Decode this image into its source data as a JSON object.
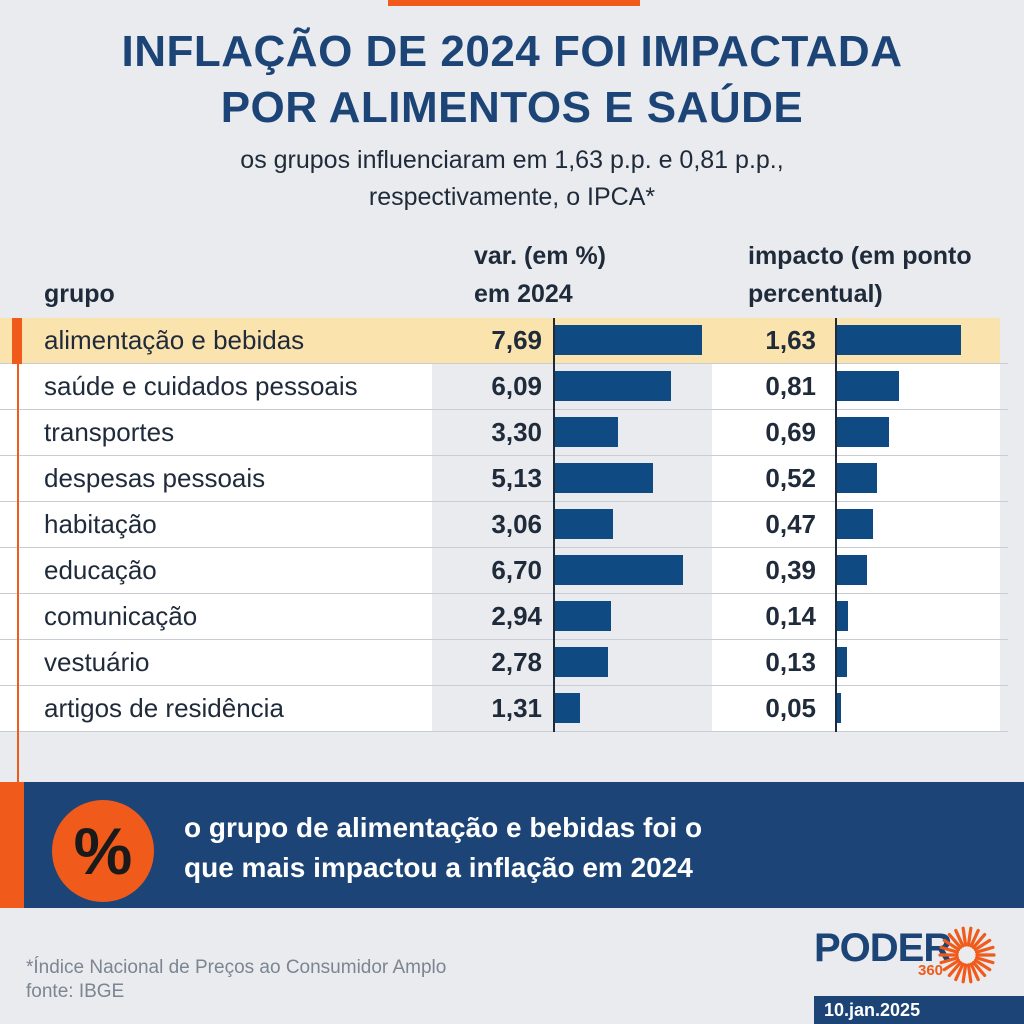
{
  "title_line1": "INFLAÇÃO DE 2024 FOI IMPACTADA",
  "title_line2": "POR ALIMENTOS E SAÚDE",
  "subtitle_line1": "os grupos influenciaram em 1,63 p.p. e 0,81 p.p.,",
  "subtitle_line2": "respectivamente, o IPCA*",
  "headers": {
    "group": "grupo",
    "var_line1": "var. (em %)",
    "var_line2": "em 2024",
    "impact_line1": "impacto (em ponto",
    "impact_line2": "percentual)"
  },
  "chart_data": {
    "type": "table",
    "highlighted_category": "alimentação e bebidas",
    "categories": [
      "alimentação e bebidas",
      "saúde e cuidados pessoais",
      "transportes",
      "despesas pessoais",
      "habitação",
      "educação",
      "comunicação",
      "vestuário",
      "artigos de residência"
    ],
    "series": [
      {
        "name": "var. (em %) em 2024",
        "values": [
          7.69,
          6.09,
          3.3,
          5.13,
          3.06,
          6.7,
          2.94,
          2.78,
          1.31
        ],
        "labels": [
          "7,69",
          "6,09",
          "3,30",
          "5,13",
          "3,06",
          "6,70",
          "2,94",
          "2,78",
          "1,31"
        ]
      },
      {
        "name": "impacto (em ponto percentual)",
        "values": [
          1.63,
          0.81,
          0.69,
          0.52,
          0.47,
          0.39,
          0.14,
          0.13,
          0.05
        ],
        "labels": [
          "1,63",
          "0,81",
          "0,69",
          "0,52",
          "0,47",
          "0,39",
          "0,14",
          "0,13",
          "0,05"
        ]
      }
    ],
    "colors": {
      "bar": "#0f4a82",
      "highlight": "#fbe3ad",
      "accent": "#f05a1a"
    }
  },
  "banner": {
    "icon": "percent-icon",
    "symbol": "%",
    "text_line1": "o grupo de alimentação e bebidas foi o",
    "text_line2": "que mais impactou a inflação em 2024"
  },
  "footnote_line1": "*Índice Nacional de Preços ao Consumidor Amplo",
  "footnote_line2": "fonte: IBGE",
  "logo": {
    "name": "PODER",
    "sub": "360"
  },
  "date": "10.jan.2025"
}
